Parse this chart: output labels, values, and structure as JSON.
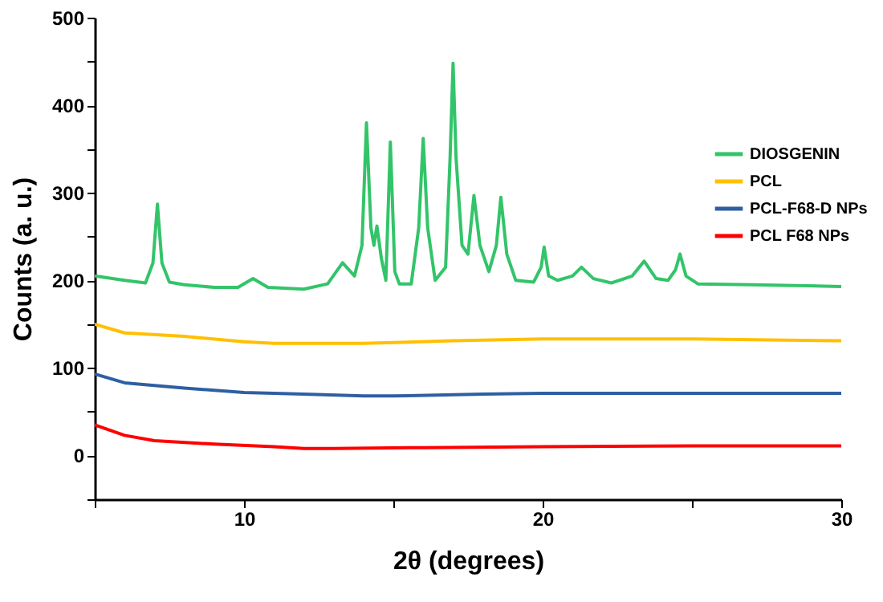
{
  "chart_data": {
    "type": "line",
    "xlabel": "2θ (degrees)",
    "ylabel": "Counts (a. u.)",
    "xlim": [
      5,
      30
    ],
    "xticks": [
      {
        "value": 5,
        "label": null
      },
      10,
      {
        "value": 15,
        "label": null
      },
      20,
      {
        "value": 25,
        "label": null
      },
      30
    ],
    "ylim": [
      -50,
      500
    ],
    "yticks": [
      {
        "value": -50,
        "label": null
      },
      0,
      {
        "value": 50,
        "label": null
      },
      100,
      {
        "value": 150,
        "label": null
      },
      200,
      {
        "value": 250,
        "label": null
      },
      300,
      {
        "value": 350,
        "label": null
      },
      400,
      {
        "value": 450,
        "label": null
      },
      500
    ],
    "grid": false,
    "legend": "top right",
    "marker": "none",
    "line_style": "solid",
    "series": [
      {
        "name": "DIOSGENIN",
        "color": "#33c46a",
        "x": [
          5,
          6,
          6.7,
          6.95,
          7.1,
          7.25,
          7.5,
          8,
          9,
          9.8,
          10.3,
          10.8,
          12,
          12.8,
          13.3,
          13.7,
          13.95,
          14.1,
          14.25,
          14.35,
          14.45,
          14.6,
          14.75,
          14.9,
          15.05,
          15.2,
          15.6,
          15.85,
          16,
          16.15,
          16.4,
          16.75,
          16.9,
          17,
          17.1,
          17.3,
          17.5,
          17.7,
          17.9,
          18.2,
          18.45,
          18.6,
          18.8,
          19.1,
          19.7,
          19.95,
          20.05,
          20.2,
          20.5,
          21,
          21.3,
          21.7,
          22.3,
          23,
          23.4,
          23.8,
          24.2,
          24.45,
          24.6,
          24.8,
          25.2,
          27,
          30
        ],
        "values": [
          205,
          200,
          197,
          220,
          287,
          220,
          198,
          195,
          192,
          192,
          202,
          192,
          190,
          196,
          220,
          205,
          240,
          380,
          260,
          240,
          262,
          225,
          200,
          358,
          210,
          196,
          196,
          260,
          362,
          260,
          200,
          215,
          340,
          448,
          340,
          240,
          230,
          297,
          240,
          210,
          240,
          295,
          230,
          200,
          198,
          215,
          238,
          205,
          200,
          205,
          215,
          202,
          197,
          205,
          222,
          202,
          200,
          212,
          230,
          205,
          196,
          195,
          193
        ]
      },
      {
        "name": "PCL",
        "color": "#ffc000",
        "x": [
          5,
          6,
          8,
          10,
          11,
          14,
          17,
          20,
          25,
          30
        ],
        "values": [
          150,
          140,
          136,
          130,
          128,
          128,
          131,
          133,
          133,
          131
        ]
      },
      {
        "name": "PCL-F68-D NPs",
        "color": "#2e5fa3",
        "x": [
          5,
          6,
          8,
          10,
          12,
          14,
          15,
          18,
          20,
          30
        ],
        "values": [
          93,
          83,
          77,
          72,
          70,
          68,
          68,
          70,
          71,
          71
        ]
      },
      {
        "name": "PCL F68  NPs",
        "color": "#ff0000",
        "x": [
          5,
          6,
          7,
          9,
          11,
          12,
          13,
          16,
          20,
          25,
          30
        ],
        "values": [
          35,
          23,
          17,
          13,
          10,
          8,
          8,
          9,
          10,
          11,
          11
        ]
      }
    ]
  }
}
